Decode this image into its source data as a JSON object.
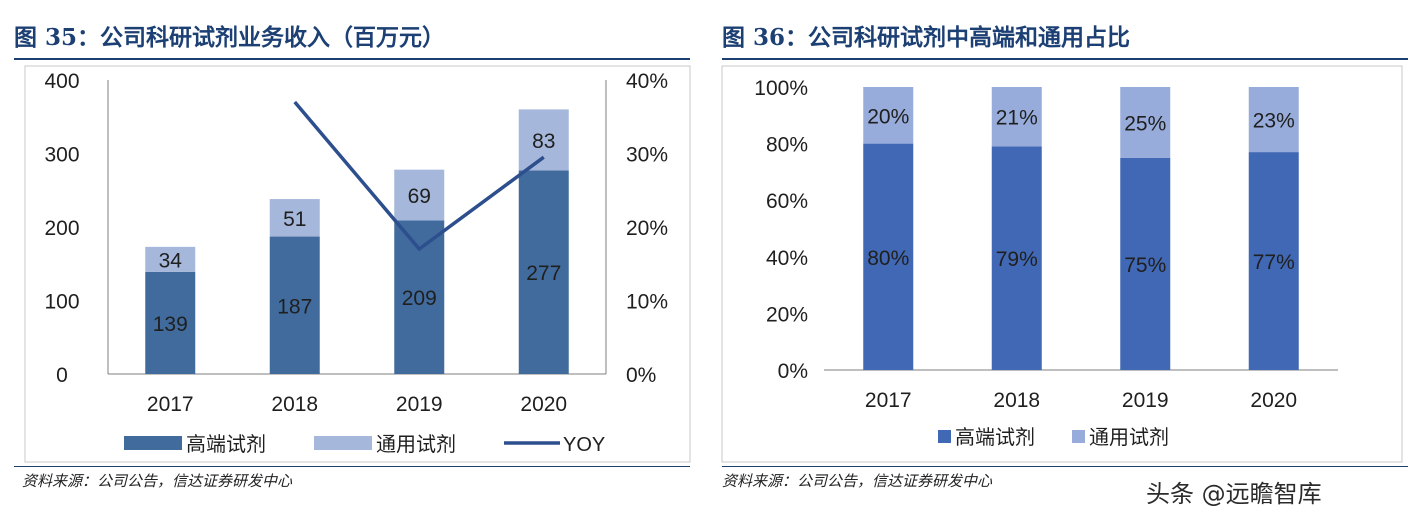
{
  "left": {
    "title": "图 35：公司科研试剂业务收入（百万元）",
    "source": "资料来源：公司公告，信达证券研发中心"
  },
  "right": {
    "title": "图 36：公司科研试剂中高端和通用占比",
    "source": "资料来源：公司公告，信达证券研发中心"
  },
  "watermark": "头条 @远瞻智库",
  "colors": {
    "dark": "#416b9d",
    "light": "#a5b7da",
    "line": "#2d4f8e",
    "blue": "#4168b4",
    "blue_light": "#97acdb"
  },
  "chart_data": [
    {
      "type": "bar",
      "stacked": true,
      "title": "公司科研试剂业务收入（百万元）",
      "categories": [
        "2017",
        "2018",
        "2019",
        "2020"
      ],
      "series": [
        {
          "name": "高端试剂",
          "values": [
            139,
            187,
            209,
            277
          ]
        },
        {
          "name": "通用试剂",
          "values": [
            34,
            51,
            69,
            83
          ]
        }
      ],
      "line_series": {
        "name": "YOY",
        "axis": "secondary",
        "values": [
          null,
          37,
          17,
          29.5
        ]
      },
      "ylim": [
        0,
        400
      ],
      "yticks": [
        "0",
        "100",
        "200",
        "300",
        "400"
      ],
      "y2lim": [
        0,
        40
      ],
      "y2ticks": [
        "0%",
        "10%",
        "20%",
        "30%",
        "40%"
      ],
      "data_labels": {
        "dark": [
          "139",
          "187",
          "209",
          "277"
        ],
        "light": [
          "34",
          "51",
          "69",
          "83"
        ]
      },
      "legend": [
        "高端试剂",
        "通用试剂",
        "YOY"
      ],
      "legend_position": "bottom"
    },
    {
      "type": "bar",
      "stacked": true,
      "percent": true,
      "title": "公司科研试剂中高端和通用占比",
      "categories": [
        "2017",
        "2018",
        "2019",
        "2020"
      ],
      "series": [
        {
          "name": "高端试剂",
          "values": [
            80,
            79,
            75,
            77
          ]
        },
        {
          "name": "通用试剂",
          "values": [
            20,
            21,
            25,
            23
          ]
        }
      ],
      "ylim": [
        0,
        100
      ],
      "yticks": [
        "0%",
        "20%",
        "40%",
        "60%",
        "80%",
        "100%"
      ],
      "data_labels": {
        "dark": [
          "80%",
          "79%",
          "75%",
          "77%"
        ],
        "light": [
          "20%",
          "21%",
          "25%",
          "23%"
        ]
      },
      "legend": [
        "高端试剂",
        "通用试剂"
      ],
      "legend_position": "bottom"
    }
  ]
}
